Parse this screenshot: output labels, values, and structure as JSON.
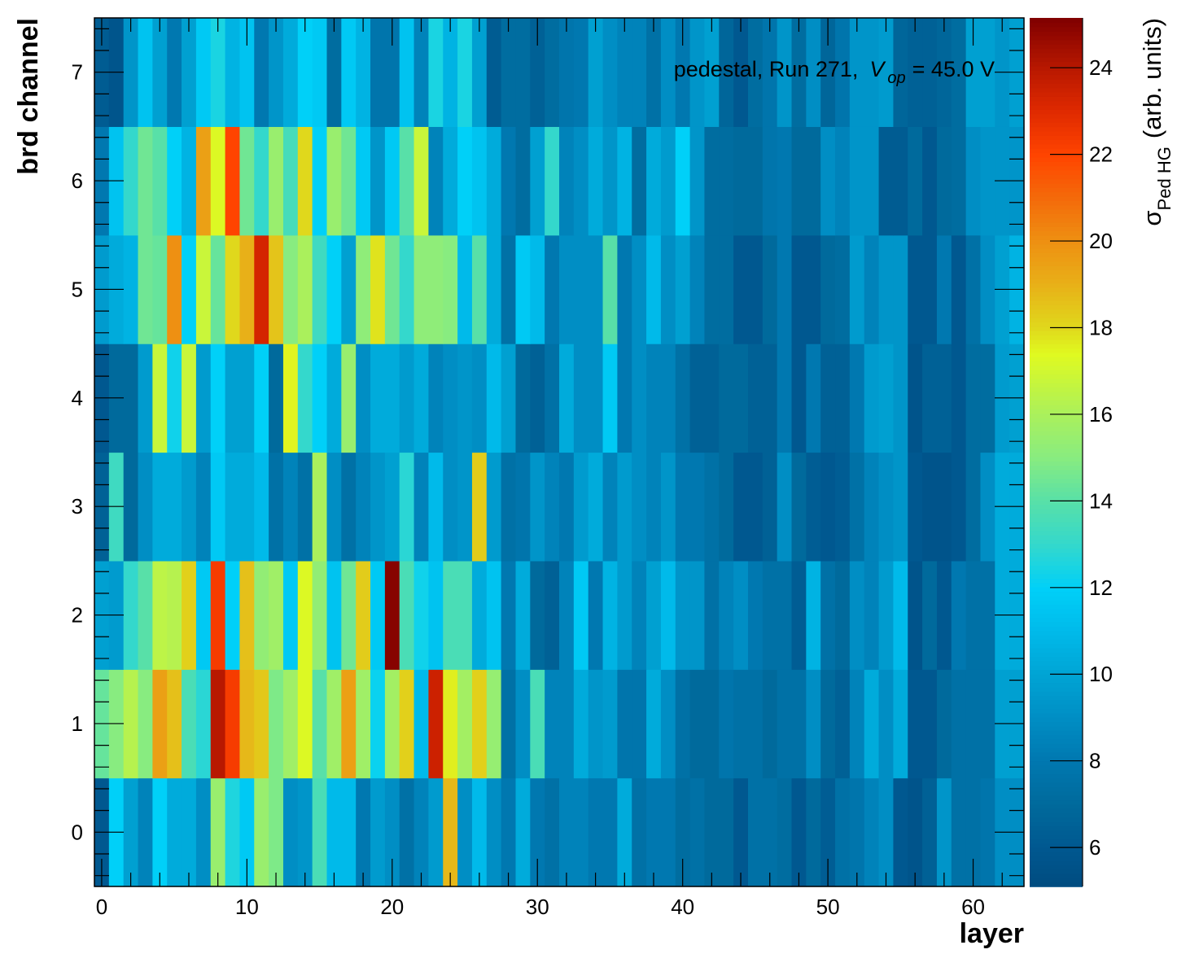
{
  "chart_data": {
    "type": "heatmap",
    "title": "",
    "annotation": {
      "text_prefix": "pedestal, Run 271,",
      "var_main": "V",
      "var_sub": "op",
      "text_suffix": "= 45.0 V",
      "placement": "top-right"
    },
    "xlabel": "layer",
    "ylabel": "brd channel",
    "zlabel_main": "σ",
    "zlabel_sub": "Ped HG",
    "zlabel_suffix": "(arb. units)",
    "xlim": [
      -0.5,
      63.5
    ],
    "ylim": [
      -0.5,
      7.5
    ],
    "zlim": [
      5.1,
      25.15
    ],
    "x_ticks": [
      0,
      10,
      20,
      30,
      40,
      50,
      60
    ],
    "y_ticks": [
      0,
      1,
      2,
      3,
      4,
      5,
      6,
      7
    ],
    "z_ticks": [
      6,
      8,
      10,
      12,
      14,
      16,
      18,
      20,
      22,
      24
    ],
    "grid": false,
    "colorbar": "right",
    "x": [
      0,
      1,
      2,
      3,
      4,
      5,
      6,
      7,
      8,
      9,
      10,
      11,
      12,
      13,
      14,
      15,
      16,
      17,
      18,
      19,
      20,
      21,
      22,
      23,
      24,
      25,
      26,
      27,
      28,
      29,
      30,
      31,
      32,
      33,
      34,
      35,
      36,
      37,
      38,
      39,
      40,
      41,
      42,
      43,
      44,
      45,
      46,
      47,
      48,
      49,
      50,
      51,
      52,
      53,
      54,
      55,
      56,
      57,
      58,
      59,
      60,
      61,
      62,
      63
    ],
    "y": [
      0,
      1,
      2,
      3,
      4,
      5,
      6,
      7
    ],
    "z": [
      [
        6.0,
        12.0,
        9.8,
        8.5,
        12.0,
        10.3,
        10.3,
        9.0,
        15.5,
        12.6,
        11.7,
        15.5,
        14.8,
        9.0,
        9.3,
        13.6,
        11.0,
        11.0,
        8.0,
        9.6,
        9.0,
        7.5,
        8.5,
        9.6,
        18.8,
        9.0,
        11.0,
        9.0,
        8.0,
        10.3,
        8.0,
        7.5,
        8.5,
        8.5,
        8.0,
        8.0,
        10.3,
        7.5,
        8.0,
        8.0,
        7.2,
        7.5,
        7.0,
        7.0,
        6.0,
        7.5,
        7.5,
        7.2,
        6.0,
        7.0,
        6.3,
        7.5,
        7.8,
        8.5,
        9.0,
        6.0,
        5.7,
        6.5,
        9.3,
        7.5,
        7.5,
        7.8,
        9.0,
        9.0
      ],
      [
        14.3,
        15.0,
        16.3,
        15.0,
        19.5,
        18.6,
        13.6,
        12.8,
        24.0,
        22.3,
        18.8,
        18.4,
        14.8,
        15.7,
        17.3,
        14.0,
        15.7,
        19.5,
        15.7,
        12.2,
        15.8,
        18.2,
        11.0,
        23.5,
        17.6,
        15.8,
        18.2,
        15.4,
        7.5,
        9.0,
        13.6,
        8.5,
        8.5,
        10.3,
        9.3,
        9.6,
        7.8,
        7.8,
        10.3,
        9.0,
        7.5,
        7.0,
        7.0,
        7.8,
        7.5,
        7.5,
        7.0,
        7.5,
        7.5,
        9.0,
        7.0,
        6.5,
        8.5,
        10.3,
        9.0,
        10.3,
        6.0,
        6.0,
        7.0,
        7.5,
        7.5,
        7.5,
        9.8,
        9.8
      ],
      [
        9.8,
        9.6,
        13.0,
        14.0,
        16.5,
        16.3,
        18.2,
        11.7,
        22.3,
        12.0,
        18.6,
        15.3,
        15.7,
        11.7,
        17.3,
        15.3,
        11.4,
        14.5,
        18.3,
        11.7,
        25.0,
        13.6,
        12.3,
        11.4,
        13.6,
        13.6,
        10.3,
        11.4,
        8.0,
        10.3,
        7.0,
        6.5,
        8.5,
        11.7,
        8.0,
        10.7,
        9.6,
        8.5,
        9.8,
        11.0,
        9.3,
        9.3,
        7.5,
        8.5,
        9.0,
        8.0,
        7.5,
        7.5,
        6.3,
        10.7,
        7.5,
        7.0,
        9.0,
        8.5,
        9.6,
        11.0,
        5.7,
        7.0,
        6.0,
        8.0,
        7.5,
        7.5,
        10.3,
        10.3
      ],
      [
        6.5,
        13.3,
        7.0,
        9.0,
        10.3,
        10.3,
        9.6,
        8.5,
        11.7,
        10.3,
        10.3,
        11.0,
        7.5,
        8.5,
        7.5,
        16.0,
        9.0,
        7.5,
        8.5,
        9.3,
        9.8,
        12.8,
        8.5,
        11.0,
        9.0,
        9.3,
        18.3,
        9.6,
        7.5,
        7.8,
        9.3,
        8.5,
        8.0,
        9.6,
        10.3,
        8.5,
        9.6,
        9.0,
        8.5,
        9.3,
        8.0,
        8.0,
        7.5,
        7.0,
        6.0,
        6.0,
        6.5,
        9.0,
        7.0,
        6.3,
        6.0,
        6.3,
        7.5,
        8.5,
        9.0,
        9.3,
        6.0,
        5.7,
        5.7,
        6.0,
        7.2,
        9.0,
        10.3,
        10.3
      ],
      [
        6.0,
        7.0,
        7.0,
        9.6,
        16.8,
        12.3,
        16.8,
        9.6,
        12.0,
        9.8,
        9.8,
        12.0,
        7.0,
        17.5,
        13.0,
        12.0,
        10.3,
        15.5,
        9.0,
        10.3,
        10.3,
        9.6,
        10.3,
        8.5,
        9.0,
        9.3,
        9.0,
        11.0,
        9.8,
        7.0,
        6.5,
        7.5,
        10.3,
        9.0,
        9.0,
        11.7,
        8.0,
        9.0,
        8.5,
        8.5,
        7.5,
        6.5,
        6.5,
        7.0,
        7.0,
        6.5,
        6.5,
        8.0,
        6.0,
        8.0,
        6.5,
        6.5,
        8.0,
        9.6,
        9.8,
        9.3,
        5.7,
        6.5,
        6.5,
        6.0,
        7.2,
        7.2,
        9.6,
        9.8
      ],
      [
        9.6,
        10.3,
        10.7,
        14.5,
        14.3,
        20.0,
        12.0,
        16.8,
        14.3,
        18.0,
        19.0,
        23.3,
        18.5,
        15.0,
        16.0,
        13.3,
        12.0,
        9.8,
        15.2,
        17.8,
        14.5,
        13.0,
        15.2,
        15.2,
        15.0,
        11.0,
        14.0,
        10.3,
        7.5,
        11.7,
        11.0,
        8.0,
        9.0,
        9.0,
        9.0,
        14.0,
        8.0,
        9.0,
        11.0,
        9.0,
        9.8,
        8.5,
        7.2,
        7.2,
        6.0,
        6.0,
        7.0,
        8.0,
        6.0,
        6.0,
        7.0,
        7.2,
        9.6,
        8.5,
        9.3,
        9.3,
        6.0,
        6.0,
        8.0,
        6.0,
        7.5,
        9.0,
        9.8,
        10.7
      ],
      [
        8.0,
        11.4,
        13.0,
        14.5,
        14.0,
        12.0,
        10.7,
        19.5,
        17.3,
        22.0,
        14.5,
        13.0,
        15.5,
        13.5,
        18.0,
        12.0,
        15.5,
        14.5,
        11.7,
        9.3,
        11.7,
        14.0,
        16.8,
        8.5,
        10.3,
        12.0,
        11.4,
        10.3,
        8.0,
        7.2,
        9.8,
        13.0,
        8.5,
        9.0,
        10.3,
        9.3,
        10.7,
        7.2,
        10.3,
        9.6,
        12.0,
        9.3,
        7.2,
        7.2,
        7.0,
        7.0,
        7.8,
        8.0,
        7.0,
        7.0,
        9.0,
        8.5,
        9.3,
        9.3,
        6.2,
        6.2,
        7.0,
        6.0,
        7.0,
        7.2,
        9.0,
        9.3,
        9.3,
        9.3
      ],
      [
        6.2,
        5.8,
        9.3,
        11.4,
        9.8,
        8.0,
        9.8,
        11.7,
        12.5,
        10.7,
        11.4,
        8.0,
        9.3,
        10.3,
        12.0,
        11.7,
        7.2,
        11.7,
        10.7,
        7.8,
        7.8,
        11.4,
        8.5,
        12.5,
        10.7,
        12.5,
        9.8,
        6.2,
        7.2,
        7.2,
        6.5,
        7.2,
        7.8,
        8.0,
        9.8,
        9.0,
        8.5,
        8.5,
        7.5,
        9.0,
        8.0,
        9.3,
        9.8,
        6.8,
        6.0,
        7.2,
        7.8,
        9.3,
        7.2,
        9.0,
        6.8,
        7.8,
        9.3,
        9.3,
        9.6,
        6.8,
        6.5,
        6.5,
        6.8,
        7.2,
        9.8,
        9.8,
        9.3,
        9.8
      ]
    ]
  },
  "palette_stops": [
    [
      5.1,
      "#004c80"
    ],
    [
      6.0,
      "#005890"
    ],
    [
      7.0,
      "#006a9c"
    ],
    [
      8.0,
      "#0078b0"
    ],
    [
      9.0,
      "#008ec4"
    ],
    [
      10.0,
      "#00a4d4"
    ],
    [
      11.0,
      "#00baea"
    ],
    [
      12.0,
      "#00d0f8"
    ],
    [
      13.0,
      "#34d8cc"
    ],
    [
      14.0,
      "#58e0a8"
    ],
    [
      15.0,
      "#88ec80"
    ],
    [
      16.0,
      "#aaf05c"
    ],
    [
      17.4,
      "#e0fa20"
    ],
    [
      18.0,
      "#e0d81c"
    ],
    [
      19.0,
      "#e8b018"
    ],
    [
      20.0,
      "#ee9012"
    ],
    [
      21.0,
      "#f46a0a"
    ],
    [
      22.0,
      "#ff4400"
    ],
    [
      23.0,
      "#e02a00"
    ],
    [
      24.0,
      "#b81800"
    ],
    [
      25.15,
      "#800000"
    ]
  ]
}
